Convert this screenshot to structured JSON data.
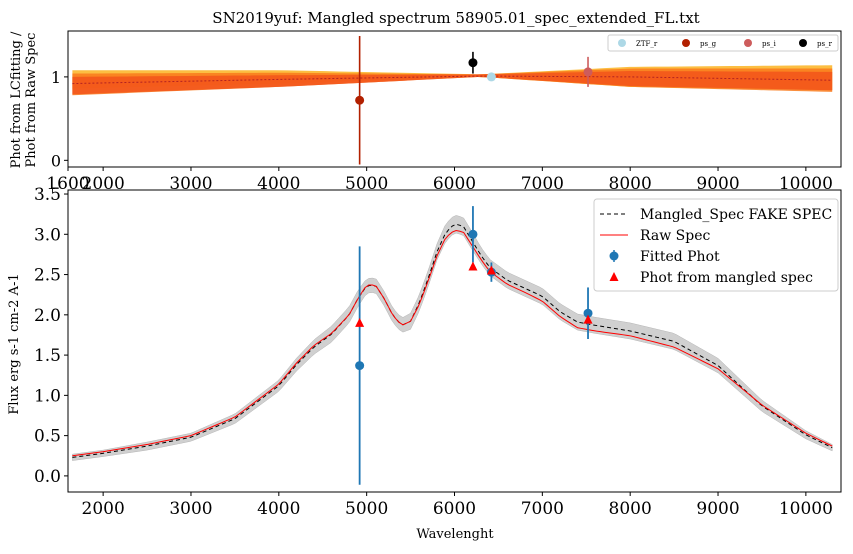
{
  "figure": {
    "title": "SN2019yuf: Mangled spectrum 58905.01_spec_extended_FL.txt"
  },
  "chart_data": [
    {
      "type": "line",
      "panel": "top",
      "ylabel_lines": [
        "Phot from LCfitting /",
        "Phot from Raw Spec"
      ],
      "xlim": [
        1600,
        10400
      ],
      "ylim": [
        -0.08,
        1.55
      ],
      "xticks": [
        1600,
        2000,
        3000,
        4000,
        5000,
        6000,
        7000,
        8000,
        9000,
        10000
      ],
      "xtick_labels": [
        "1600",
        "2000",
        "3000",
        "4000",
        "5000",
        "6000",
        "7000",
        "8000",
        "9000",
        "10000"
      ],
      "yticks": [
        0,
        1
      ],
      "ytick_labels": [
        "0",
        "1"
      ],
      "bands": [
        {
          "color": "#fbb321",
          "x": [
            1650,
            4000,
            6300,
            8000,
            10300
          ],
          "low": [
            0.86,
            0.92,
            1.0,
            0.88,
            0.84
          ],
          "high": [
            1.08,
            1.08,
            1.03,
            1.12,
            1.14
          ]
        },
        {
          "color": "#f97a1b",
          "x": [
            1650,
            4000,
            6300,
            8000,
            10300
          ],
          "low": [
            0.78,
            0.88,
            1.0,
            0.88,
            0.82
          ],
          "high": [
            1.04,
            1.05,
            1.03,
            1.1,
            1.1
          ]
        },
        {
          "color": "#f2531a",
          "x": [
            1650,
            4000,
            6300,
            8000,
            10300
          ],
          "low": [
            0.79,
            0.88,
            1.0,
            0.89,
            0.84
          ],
          "high": [
            1.0,
            1.02,
            1.03,
            1.07,
            1.06
          ]
        }
      ],
      "ratio_line": {
        "color": "#b22222",
        "x": [
          1650,
          4000,
          6300,
          8000,
          10300
        ],
        "y": [
          0.92,
          0.97,
          1.01,
          1.0,
          0.96
        ]
      },
      "points": [
        {
          "name": "ZTF_r",
          "x": 6420,
          "y": 1.0,
          "yerr": 0.02,
          "color": "#add8e6"
        },
        {
          "name": "ps_g",
          "x": 4920,
          "y": 0.72,
          "yerr": 0.77,
          "color": "#b22000"
        },
        {
          "name": "ps_i",
          "x": 7520,
          "y": 1.06,
          "yerr": 0.18,
          "color": "#cd5c5c"
        },
        {
          "name": "ps_r",
          "x": 6210,
          "y": 1.17,
          "yerr": 0.13,
          "color": "#000000"
        }
      ],
      "legend": {
        "placement": "top-right",
        "entries": [
          "ZTF_r",
          "ps_g",
          "ps_i",
          "ps_r"
        ]
      }
    },
    {
      "type": "line",
      "panel": "bottom",
      "xlabel": "Wavelenght",
      "ylabel": "Flux erg s-1 cm-2 A-1",
      "xlim": [
        1600,
        10400
      ],
      "ylim": [
        -0.2,
        3.55
      ],
      "xticks": [
        2000,
        3000,
        4000,
        5000,
        6000,
        7000,
        8000,
        9000,
        10000
      ],
      "yticks": [
        0.0,
        0.5,
        1.0,
        1.5,
        2.0,
        2.5,
        3.0,
        3.5
      ],
      "ytick_labels": [
        "0.0",
        "0.5",
        "1.0",
        "1.5",
        "2.0",
        "2.5",
        "3.0",
        "3.5"
      ],
      "spectrum_x": [
        1650,
        2000,
        2500,
        3000,
        3500,
        4000,
        4200,
        4400,
        4600,
        4800,
        4900,
        5000,
        5100,
        5200,
        5300,
        5400,
        5500,
        5600,
        5700,
        5800,
        5900,
        6000,
        6100,
        6200,
        6300,
        6400,
        6600,
        6800,
        7000,
        7200,
        7400,
        7600,
        8000,
        8500,
        9000,
        9500,
        10000,
        10300
      ],
      "series": [
        {
          "name": "Mangled_Spec FAKE SPEC",
          "color": "#000000",
          "dash": "4,3",
          "y": [
            0.23,
            0.28,
            0.37,
            0.48,
            0.71,
            1.12,
            1.38,
            1.6,
            1.76,
            2.0,
            2.2,
            2.36,
            2.37,
            2.2,
            1.99,
            1.87,
            1.92,
            2.15,
            2.45,
            2.78,
            3.02,
            3.13,
            3.1,
            2.92,
            2.74,
            2.59,
            2.43,
            2.33,
            2.23,
            2.04,
            1.91,
            1.87,
            1.8,
            1.67,
            1.37,
            0.87,
            0.51,
            0.35
          ]
        },
        {
          "name": "Raw Spec",
          "color": "#ff0000",
          "dash": "",
          "y": [
            0.25,
            0.3,
            0.39,
            0.5,
            0.73,
            1.14,
            1.4,
            1.62,
            1.77,
            2.0,
            2.2,
            2.37,
            2.37,
            2.2,
            1.99,
            1.87,
            1.92,
            2.13,
            2.42,
            2.73,
            2.96,
            3.05,
            3.03,
            2.86,
            2.69,
            2.54,
            2.38,
            2.28,
            2.17,
            1.98,
            1.84,
            1.8,
            1.74,
            1.6,
            1.33,
            0.88,
            0.53,
            0.37
          ]
        }
      ],
      "uncertainty_band": {
        "color": "#c8c8c8",
        "half_width": [
          0.04,
          0.04,
          0.05,
          0.05,
          0.06,
          0.07,
          0.08,
          0.09,
          0.1,
          0.1,
          0.1,
          0.09,
          0.09,
          0.09,
          0.09,
          0.09,
          0.1,
          0.1,
          0.1,
          0.1,
          0.11,
          0.11,
          0.11,
          0.11,
          0.1,
          0.1,
          0.1,
          0.1,
          0.1,
          0.1,
          0.1,
          0.1,
          0.1,
          0.1,
          0.09,
          0.07,
          0.05,
          0.04
        ]
      },
      "fitted_phot": {
        "name": "Fitted Phot",
        "color": "#1f77b4",
        "points": [
          {
            "x": 4920,
            "y": 1.37,
            "yerr": 1.48
          },
          {
            "x": 6210,
            "y": 3.0,
            "yerr": 0.35
          },
          {
            "x": 6420,
            "y": 2.53,
            "yerr": 0.12
          },
          {
            "x": 7520,
            "y": 2.02,
            "yerr": 0.32
          }
        ]
      },
      "mangled_phot": {
        "name": "Phot from mangled spec",
        "color": "#ff0000",
        "points": [
          {
            "x": 4920,
            "y": 1.9
          },
          {
            "x": 6210,
            "y": 2.6
          },
          {
            "x": 6420,
            "y": 2.55
          },
          {
            "x": 7520,
            "y": 1.94
          }
        ]
      },
      "legend": {
        "placement": "top-right",
        "entries": [
          "Mangled_Spec FAKE SPEC",
          "Raw Spec",
          "Fitted Phot",
          "Phot from mangled spec"
        ]
      }
    }
  ]
}
